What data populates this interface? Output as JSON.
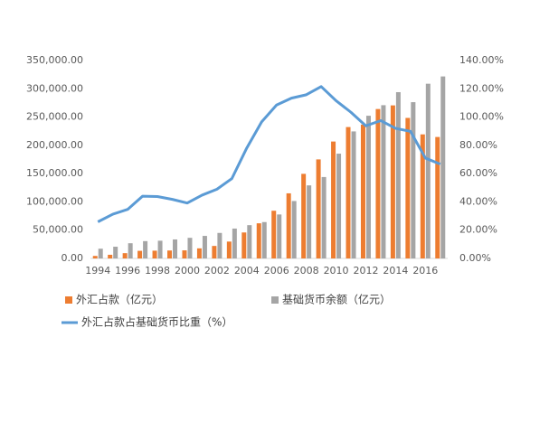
{
  "chart_data": {
    "type": "bar-line",
    "categories": [
      "1994",
      null,
      "1996",
      null,
      "1998",
      null,
      "2000",
      null,
      "2002",
      null,
      "2004",
      null,
      "2006",
      null,
      "2008",
      null,
      "2010",
      null,
      "2012",
      null,
      "2014",
      null,
      "2016",
      null
    ],
    "series": [
      {
        "name": "外汇占款（亿元）",
        "type": "bar",
        "color": "#ED7D31",
        "values": [
          4451,
          6491,
          9330,
          13467,
          13728,
          14061,
          14291,
          17856,
          22107,
          29842,
          45940,
          62140,
          84361,
          115169,
          149624,
          175155,
          206767,
          232389,
          236670,
          264270,
          270681,
          248538,
          219425,
          214788
        ]
      },
      {
        "name": "基础货币余额（亿元）",
        "type": "bar",
        "color": "#A5A5A5",
        "values": [
          17218,
          20760,
          26889,
          30633,
          31335,
          33620,
          36491,
          39852,
          45138,
          52841,
          58856,
          64343,
          77758,
          101545,
          129222,
          143985,
          185311,
          224641,
          252345,
          271023,
          294093,
          276377,
          308980,
          321870
        ]
      },
      {
        "name": "外汇占款占基础货币比重（%）",
        "type": "line",
        "axis": "y2",
        "color": "#5B9BD5",
        "values": [
          25.9,
          31.3,
          34.7,
          44.0,
          43.8,
          41.8,
          39.2,
          44.8,
          49.0,
          56.5,
          78.1,
          96.6,
          108.5,
          113.4,
          115.8,
          121.6,
          111.6,
          103.4,
          93.8,
          97.5,
          92.0,
          89.9,
          71.0,
          66.7
        ]
      }
    ],
    "ylim": [
      0,
      350000
    ],
    "yticks": [
      {
        "value": 0,
        "label": "0.00"
      },
      {
        "value": 50000,
        "label": "50,000.00"
      },
      {
        "value": 100000,
        "label": "100,000.00"
      },
      {
        "value": 150000,
        "label": "150,000.00"
      },
      {
        "value": 200000,
        "label": "200,000.00"
      },
      {
        "value": 250000,
        "label": "250,000.00"
      },
      {
        "value": 300000,
        "label": "300,000.00"
      },
      {
        "value": 350000,
        "label": "350,000.00"
      }
    ],
    "y2lim": [
      0,
      140
    ],
    "y2ticks": [
      {
        "value": 0,
        "label": "0.00%"
      },
      {
        "value": 20,
        "label": "20.00%"
      },
      {
        "value": 40,
        "label": "40.00%"
      },
      {
        "value": 60,
        "label": "60.00%"
      },
      {
        "value": 80,
        "label": "80.00%"
      },
      {
        "value": 100,
        "label": "100.00%"
      },
      {
        "value": 120,
        "label": "120.00%"
      },
      {
        "value": 140,
        "label": "140.00%"
      }
    ],
    "grid": false,
    "legend": "bottom"
  }
}
